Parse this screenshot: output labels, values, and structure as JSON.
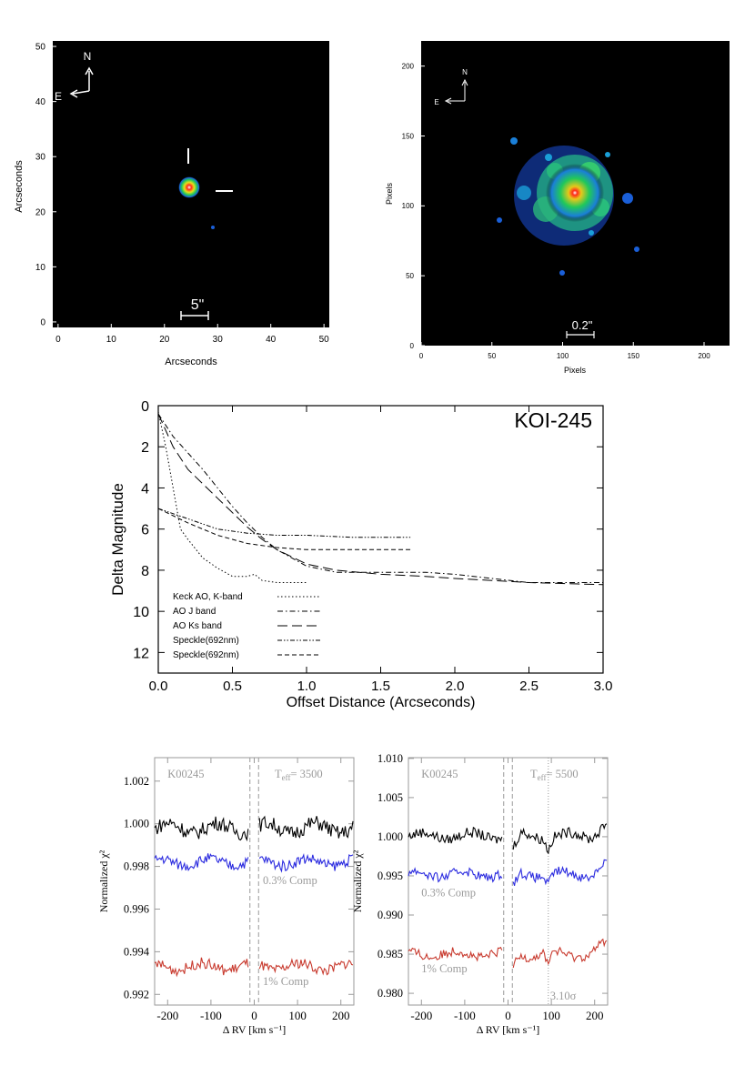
{
  "panels": {
    "ao_image": {
      "xlabel": "Arcseconds",
      "ylabel": "Arcseconds",
      "xticks": [
        0,
        10,
        20,
        30,
        40,
        50
      ],
      "yticks": [
        0,
        10,
        20,
        30,
        40,
        50
      ],
      "compass_n": "N",
      "compass_e": "E",
      "scale_label": "5\""
    },
    "speckle_image": {
      "xlabel": "Pixels",
      "ylabel": "Pixels",
      "xticks": [
        0,
        50,
        100,
        150,
        200
      ],
      "yticks": [
        0,
        50,
        100,
        150,
        200
      ],
      "compass_n": "N",
      "compass_e": "E",
      "scale_label": "0.2\""
    }
  },
  "chart_data": [
    {
      "type": "line",
      "title": "KOI-245",
      "xlabel": "Offset Distance (Arcseconds)",
      "ylabel": "Delta Magnitude",
      "xlim": [
        0,
        3
      ],
      "ylim": [
        13,
        0
      ],
      "y_inverted": true,
      "xticks": [
        "0.0",
        "0.5",
        "1.0",
        "1.5",
        "2.0",
        "2.5",
        "3.0"
      ],
      "yticks": [
        "0",
        "2",
        "4",
        "6",
        "8",
        "10",
        "12"
      ],
      "legend_position": "bottom-left",
      "series": [
        {
          "name": "Keck AO, K-band",
          "style": "dotted",
          "x": [
            0.0,
            0.05,
            0.1,
            0.15,
            0.2,
            0.3,
            0.4,
            0.5,
            0.6,
            0.65,
            0.7,
            0.8,
            0.9,
            1.0
          ],
          "y": [
            0.3,
            2.0,
            4.0,
            6.0,
            6.5,
            7.4,
            7.9,
            8.3,
            8.3,
            8.2,
            8.5,
            8.6,
            8.6,
            8.6
          ]
        },
        {
          "name": "AO J band",
          "style": "dash-dot",
          "x": [
            0.0,
            0.1,
            0.2,
            0.3,
            0.4,
            0.5,
            0.6,
            0.7,
            0.8,
            1.0,
            1.2,
            1.5,
            1.8,
            2.0,
            2.5,
            3.0
          ],
          "y": [
            0.4,
            1.5,
            2.3,
            3.1,
            4.0,
            4.9,
            5.7,
            6.4,
            7.0,
            7.8,
            8.1,
            8.1,
            8.1,
            8.2,
            8.6,
            8.6
          ]
        },
        {
          "name": "AO Ks band",
          "style": "long-dash",
          "x": [
            0.0,
            0.1,
            0.2,
            0.3,
            0.4,
            0.5,
            0.6,
            0.7,
            0.8,
            1.0,
            1.2,
            1.5,
            1.8,
            2.0,
            2.5,
            3.0
          ],
          "y": [
            0.4,
            2.0,
            3.1,
            3.8,
            4.5,
            5.2,
            5.9,
            6.5,
            7.0,
            7.7,
            8.0,
            8.2,
            8.3,
            8.4,
            8.6,
            8.7
          ]
        },
        {
          "name": "Speckle(692nm)",
          "style": "dash-dot-dot",
          "x": [
            0.0,
            0.2,
            0.4,
            0.6,
            0.8,
            1.0,
            1.3,
            1.7
          ],
          "y": [
            5.0,
            5.5,
            6.0,
            6.2,
            6.3,
            6.3,
            6.4,
            6.4
          ]
        },
        {
          "name": "Speckle(692nm)",
          "style": "short-dash",
          "x": [
            0.0,
            0.2,
            0.4,
            0.6,
            0.8,
            1.0,
            1.3,
            1.7
          ],
          "y": [
            5.0,
            5.7,
            6.3,
            6.7,
            6.9,
            7.0,
            7.0,
            7.0
          ]
        }
      ]
    },
    {
      "type": "line",
      "xlabel": "Δ RV [km s⁻¹]",
      "ylabel": "Normalized χ²",
      "xlim": [
        -230,
        230
      ],
      "ylim": [
        0.9915,
        1.0031
      ],
      "xticks": [
        "-200",
        "-100",
        "0",
        "100",
        "200"
      ],
      "yticks": [
        "0.992",
        "0.994",
        "0.996",
        "0.998",
        "1.000",
        "1.002"
      ],
      "yticks_values": [
        0.992,
        0.994,
        0.996,
        0.998,
        1.0,
        1.002
      ],
      "vlines": [
        -10,
        10
      ],
      "label_left": "K00245",
      "label_right_main": "T",
      "label_right_sub": "eff",
      "label_right_value": "= 3500",
      "annotations": [
        "0.3% Comp",
        "1% Comp"
      ],
      "series": [
        {
          "color": "#000000",
          "base": 0.9998,
          "amp": 0.0007
        },
        {
          "color": "#2a2adf",
          "base": 0.9982,
          "amp": 0.0005
        },
        {
          "color": "#c83a2e",
          "base": 0.9933,
          "amp": 0.0005
        }
      ]
    },
    {
      "type": "line",
      "xlabel": "Δ RV [km s⁻¹]",
      "ylabel": "Normalized χ²",
      "xlim": [
        -230,
        230
      ],
      "ylim": [
        0.9785,
        1.0101
      ],
      "xticks": [
        "-200",
        "-100",
        "0",
        "100",
        "200"
      ],
      "yticks": [
        "0.980",
        "0.985",
        "0.990",
        "0.995",
        "1.000",
        "1.005",
        "1.010"
      ],
      "yticks_values": [
        0.98,
        0.985,
        0.99,
        0.995,
        1.0,
        1.005,
        1.01
      ],
      "vlines": [
        -10,
        10,
        93
      ],
      "label_left": "K00245",
      "label_right_main": "T",
      "label_right_sub": "eff",
      "label_right_value": "= 5500",
      "annotations": [
        "0.3% Comp",
        "1% Comp",
        "3.10σ"
      ],
      "series": [
        {
          "color": "#000000",
          "base": 1.0001,
          "amp": 0.0013
        },
        {
          "color": "#2a2adf",
          "base": 0.9952,
          "amp": 0.0012
        },
        {
          "color": "#c83a2e",
          "base": 0.985,
          "amp": 0.0012
        }
      ]
    }
  ]
}
